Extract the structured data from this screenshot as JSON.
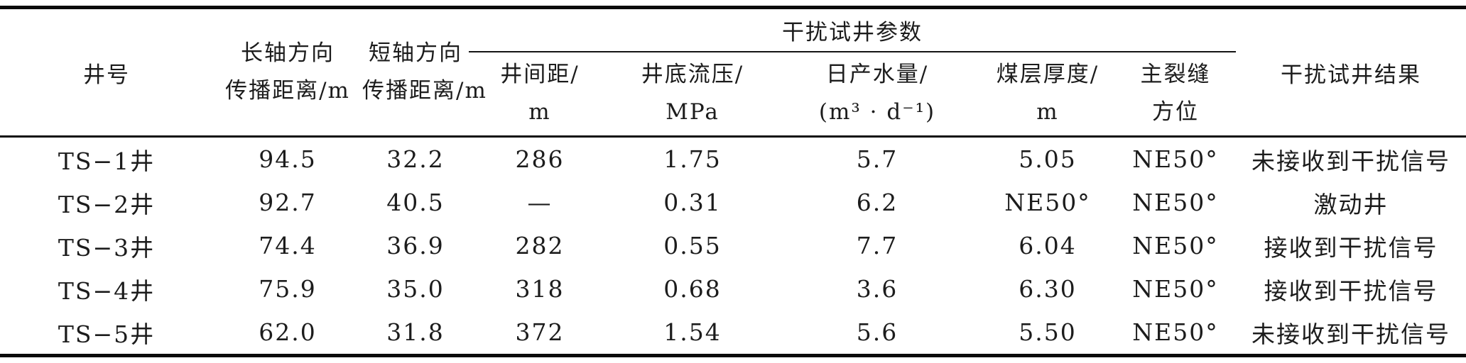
{
  "table": {
    "header": {
      "well": "井号",
      "long_axis": {
        "l1": "长轴方向",
        "l2": "传播距离/m"
      },
      "short_axis": {
        "l1": "短轴方向",
        "l2": "传播距离/m"
      },
      "params_group": "干扰试井参数",
      "well_spacing": {
        "l1": "井间距/",
        "l2": "m"
      },
      "bottomhole_pressure": {
        "l1": "井底流压/",
        "l2": "MPa"
      },
      "daily_water": {
        "l1": "日产水量/",
        "l2": "(m³ · d⁻¹)"
      },
      "coal_thickness": {
        "l1": "煤层厚度/",
        "l2": "m"
      },
      "main_fracture": {
        "l1": "主裂缝",
        "l2": "方位"
      },
      "result": "干扰试井结果"
    },
    "rows": [
      {
        "well": "TS−1井",
        "long_axis": "94.5",
        "short_axis": "32.2",
        "well_spacing": "286",
        "bottomhole_pressure": "1.75",
        "daily_water": "5.7",
        "coal_thickness": "5.05",
        "main_fracture": "NE50°",
        "result": "未接收到干扰信号"
      },
      {
        "well": "TS−2井",
        "long_axis": "92.7",
        "short_axis": "40.5",
        "well_spacing": "—",
        "bottomhole_pressure": "0.31",
        "daily_water": "6.2",
        "coal_thickness": "NE50°",
        "main_fracture": "NE50°",
        "result": "激动井"
      },
      {
        "well": "TS−3井",
        "long_axis": "74.4",
        "short_axis": "36.9",
        "well_spacing": "282",
        "bottomhole_pressure": "0.55",
        "daily_water": "7.7",
        "coal_thickness": "6.04",
        "main_fracture": "NE50°",
        "result": "接收到干扰信号"
      },
      {
        "well": "TS−4井",
        "long_axis": "75.9",
        "short_axis": "35.0",
        "well_spacing": "318",
        "bottomhole_pressure": "0.68",
        "daily_water": "3.6",
        "coal_thickness": "6.30",
        "main_fracture": "NE50°",
        "result": "接收到干扰信号"
      },
      {
        "well": "TS−5井",
        "long_axis": "62.0",
        "short_axis": "31.8",
        "well_spacing": "372",
        "bottomhole_pressure": "1.54",
        "daily_water": "5.6",
        "coal_thickness": "5.50",
        "main_fracture": "NE50°",
        "result": "未接收到干扰信号"
      }
    ]
  }
}
